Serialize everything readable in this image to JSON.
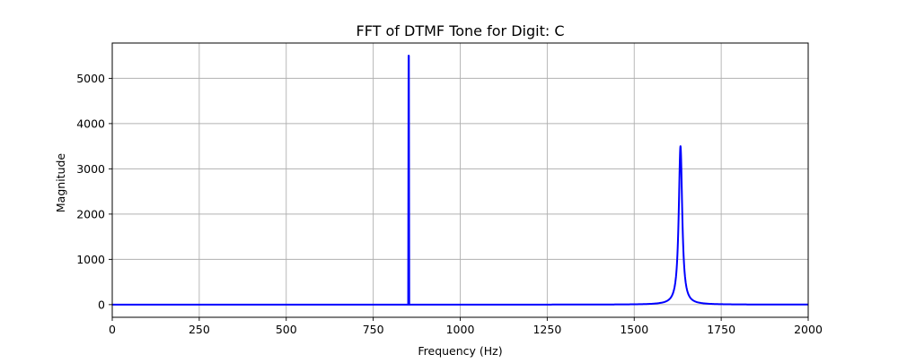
{
  "chart_data": {
    "type": "line",
    "title": "FFT of DTMF Tone for Digit: C",
    "xlabel": "Frequency (Hz)",
    "ylabel": "Magnitude",
    "xlim": [
      0,
      2000
    ],
    "ylim": [
      -280,
      5780
    ],
    "xticks": [
      0,
      250,
      500,
      750,
      1000,
      1250,
      1500,
      1750,
      2000
    ],
    "yticks": [
      0,
      1000,
      2000,
      3000,
      4000,
      5000
    ],
    "grid": true,
    "series": [
      {
        "color": "#0000ff",
        "peaks": [
          {
            "frequency": 852,
            "magnitude": 5500,
            "shape": "narrow"
          },
          {
            "frequency": 1633,
            "magnitude": 3500,
            "shape": "leaky"
          }
        ],
        "baseline": 0
      }
    ]
  }
}
